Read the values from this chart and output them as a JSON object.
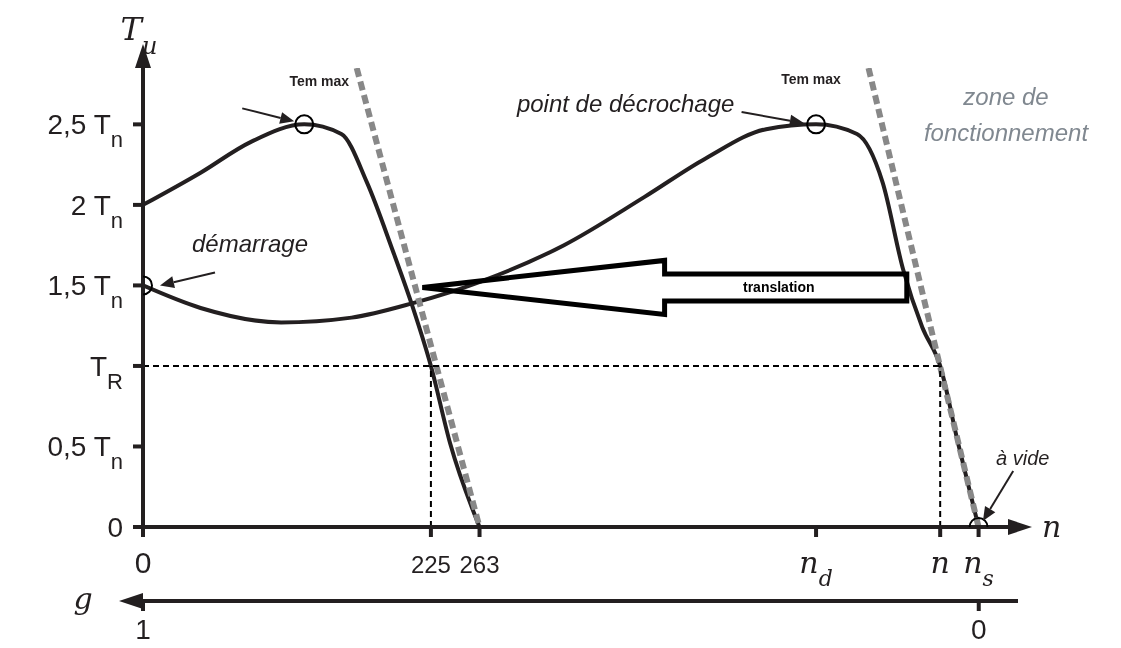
{
  "chart_data": {
    "type": "line",
    "ylabel": "T$_{u}$",
    "xlabel": "n",
    "x2label": "g",
    "xlim": [
      0,
      676
    ],
    "xticks": [
      0,
      225,
      263,
      {
        "value": 526,
        "label": "n$_{d}$"
      },
      {
        "value": 623,
        "label": "n"
      },
      {
        "value": 653,
        "label": "n$_{s}$"
      }
    ],
    "x2lim": [
      1,
      -0.035
    ],
    "x2ticks": [
      1,
      0
    ],
    "ylim": [
      0,
      2.85
    ],
    "yticks": [
      0,
      {
        "value": 0.5,
        "label": "0,5 T$_{n}$"
      },
      {
        "value": 1,
        "label": "T$_{R}$"
      },
      {
        "value": 1.5,
        "label": "1,5 T$_{n}$"
      },
      {
        "value": 2,
        "label": "2 T$_{n}$"
      },
      {
        "value": 2.5,
        "label": "2,5 T$_{n}$"
      }
    ],
    "series": [
      {
        "type": "line",
        "color": "#231f20",
        "line_style": "solid",
        "x": [
          0,
          45,
          108,
          163,
          211,
          266,
          329,
          392,
          440,
          487,
          526,
          558,
          578,
          594,
          609,
          623,
          637,
          653
        ],
        "values": [
          1.5,
          1.36,
          1.27,
          1.3,
          1.39,
          1.53,
          1.75,
          2.05,
          2.29,
          2.47,
          2.5,
          2.44,
          2.14,
          1.6,
          1.24,
          1.0,
          0.52,
          0
        ]
      },
      {
        "type": "line",
        "color": "#231f20",
        "line_style": "solid",
        "x": [
          0,
          45,
          84,
          126,
          155,
          175,
          195,
          211,
          225,
          240,
          263
        ],
        "values": [
          2.0,
          2.2,
          2.39,
          2.5,
          2.44,
          2.14,
          1.72,
          1.36,
          1.0,
          0.52,
          0
        ]
      },
      {
        "type": "line",
        "color": "#888888",
        "line_style": "dashed",
        "x": [
          167,
          263
        ],
        "values": [
          2.85,
          0
        ]
      },
      {
        "type": "line",
        "color": "#888888",
        "line_style": "dashed",
        "x": [
          567,
          653
        ],
        "values": [
          2.85,
          0
        ]
      },
      {
        "type": "line",
        "color": "#000000",
        "line_style": "dotted",
        "x": [
          0,
          623
        ],
        "values": [
          1,
          1
        ]
      },
      {
        "type": "line",
        "color": "#000000",
        "line_style": "dotted",
        "x": [
          225,
          225
        ],
        "values": [
          0,
          1
        ]
      },
      {
        "type": "line",
        "color": "#000000",
        "line_style": "dotted",
        "x": [
          623,
          623
        ],
        "values": [
          0,
          1
        ]
      },
      {
        "type": "scatter",
        "color": "#000000",
        "marker": "circle",
        "x": [
          0,
          126,
          526,
          653
        ],
        "values": [
          1.5,
          2.5,
          2.5,
          0
        ]
      }
    ],
    "annotations": [
      {
        "text": "Tem max",
        "x": 126,
        "y": 2.5
      },
      {
        "text": "Tem max",
        "x": 526,
        "y": 2.5
      },
      "point de décrochage",
      {
        "text": "démarrage",
        "x": 0,
        "y": 1.5
      },
      "à vide",
      "zone de fonctionnement",
      "translation"
    ]
  }
}
